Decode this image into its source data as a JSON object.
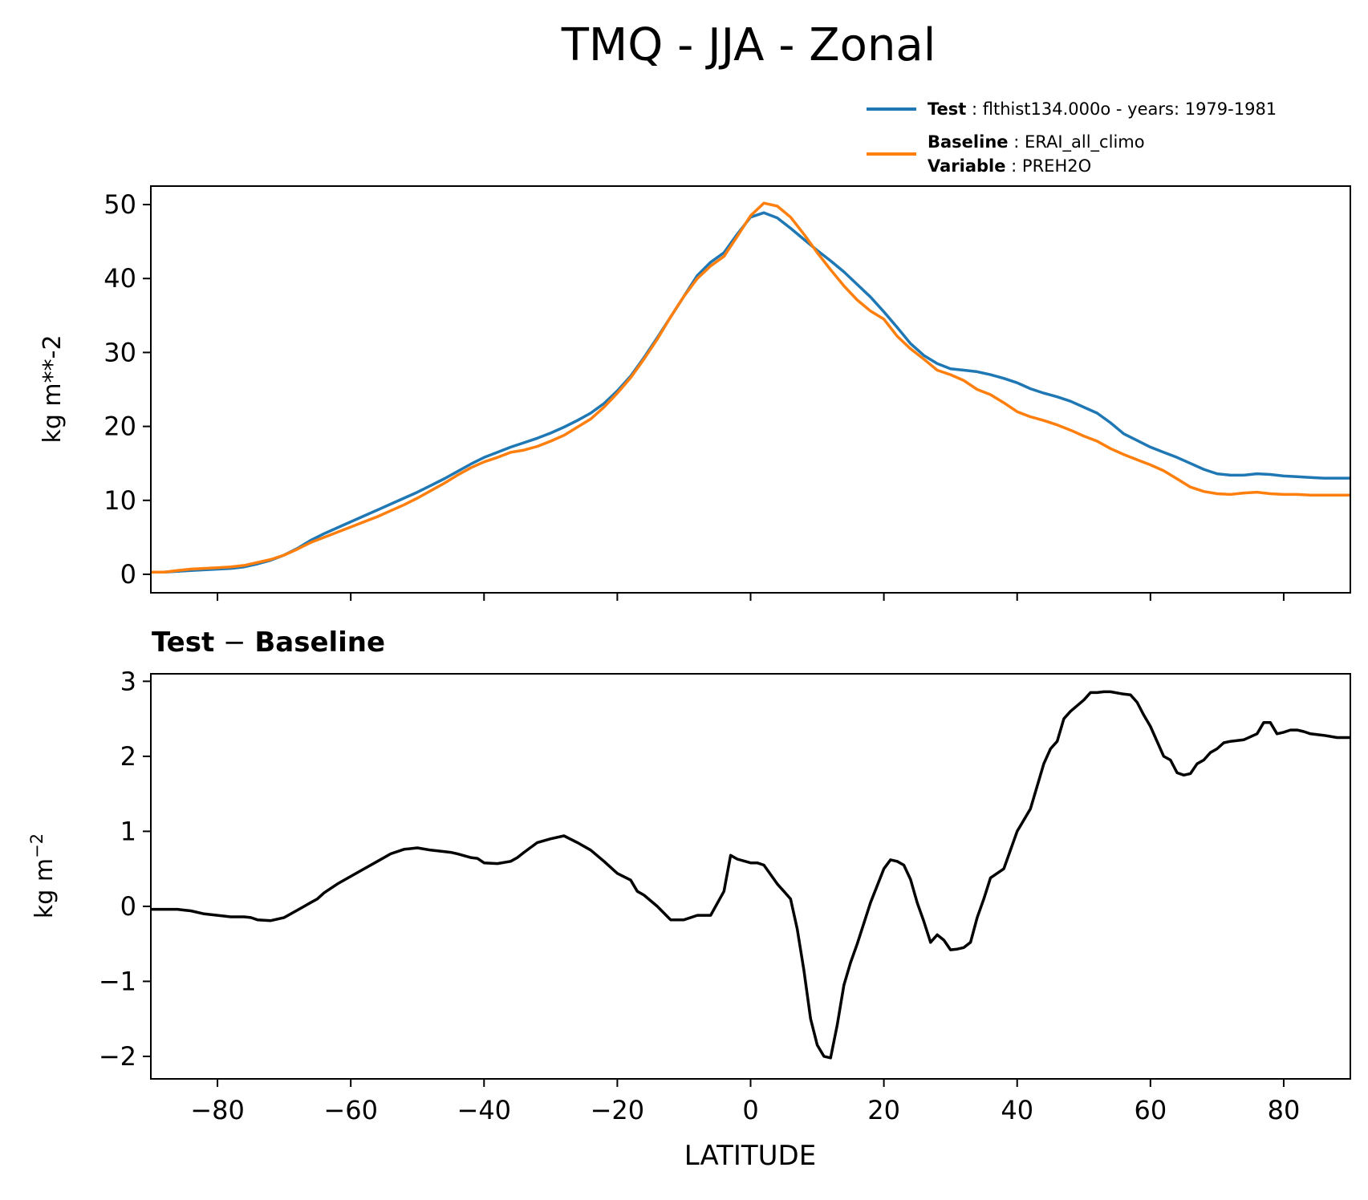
{
  "figure_title": "TMQ - JJA - Zonal",
  "legend": [
    {
      "label_bold": "Test",
      "label_sep": " : ",
      "label_text": "flthist134.000o - years: 1979-1981",
      "color": "#1f77b4"
    },
    {
      "label_bold": "Baseline",
      "label_sep": " : ",
      "label_text": "ERAI_all_climo",
      "label_bold2": "Variable",
      "label_sep2": " : ",
      "label_text2": "PREH2O",
      "color": "#ff7f0e"
    }
  ],
  "chart_data": [
    {
      "type": "line",
      "title": "",
      "xlabel": "",
      "ylabel": "kg m**-2",
      "xlim": [
        -90,
        90
      ],
      "ylim": [
        -2.5,
        52.5
      ],
      "xticks": [
        -80,
        -60,
        -40,
        -20,
        0,
        20,
        40,
        60,
        80
      ],
      "yticks": [
        0,
        10,
        20,
        30,
        40,
        50
      ],
      "ytick_labels": [
        "0",
        "10",
        "20",
        "30",
        "40",
        "50"
      ],
      "x": [
        -90,
        -88,
        -86,
        -84,
        -82,
        -80,
        -78,
        -76,
        -74,
        -72,
        -70,
        -68,
        -66,
        -64,
        -62,
        -60,
        -58,
        -56,
        -54,
        -52,
        -50,
        -48,
        -46,
        -44,
        -42,
        -40,
        -38,
        -36,
        -34,
        -32,
        -30,
        -28,
        -26,
        -24,
        -22,
        -20,
        -18,
        -16,
        -14,
        -12,
        -10,
        -8,
        -6,
        -4,
        -2,
        0,
        2,
        4,
        6,
        8,
        10,
        12,
        14,
        16,
        18,
        20,
        22,
        24,
        26,
        28,
        30,
        32,
        34,
        36,
        38,
        40,
        42,
        44,
        46,
        48,
        50,
        52,
        54,
        56,
        58,
        60,
        62,
        64,
        66,
        68,
        70,
        72,
        74,
        76,
        78,
        80,
        82,
        84,
        86,
        88,
        90
      ],
      "series": [
        {
          "name": "Test",
          "color": "#1f77b4",
          "values": [
            0.3,
            0.3,
            0.4,
            0.5,
            0.6,
            0.7,
            0.8,
            1.0,
            1.4,
            1.9,
            2.6,
            3.5,
            4.6,
            5.5,
            6.3,
            7.1,
            7.9,
            8.7,
            9.5,
            10.3,
            11.1,
            12.0,
            12.9,
            13.9,
            14.9,
            15.8,
            16.5,
            17.2,
            17.8,
            18.4,
            19.1,
            19.9,
            20.8,
            21.8,
            23.1,
            24.8,
            26.8,
            29.3,
            32.0,
            34.8,
            37.6,
            40.4,
            42.2,
            43.5,
            46.0,
            48.3,
            48.9,
            48.2,
            46.8,
            45.3,
            43.8,
            42.4,
            40.9,
            39.2,
            37.5,
            35.5,
            33.4,
            31.2,
            29.6,
            28.5,
            27.8,
            27.6,
            27.4,
            27.0,
            26.5,
            25.9,
            25.1,
            24.5,
            24.0,
            23.4,
            22.6,
            21.8,
            20.5,
            19.0,
            18.1,
            17.2,
            16.5,
            15.8,
            15.0,
            14.2,
            13.6,
            13.4,
            13.4,
            13.6,
            13.5,
            13.3,
            13.2,
            13.1,
            13.0,
            13.0,
            13.0
          ]
        },
        {
          "name": "Baseline",
          "color": "#ff7f0e",
          "values": [
            0.3,
            0.3,
            0.5,
            0.7,
            0.8,
            0.9,
            1.0,
            1.2,
            1.6,
            2.0,
            2.6,
            3.4,
            4.3,
            5.0,
            5.7,
            6.4,
            7.1,
            7.8,
            8.6,
            9.4,
            10.3,
            11.3,
            12.3,
            13.4,
            14.4,
            15.2,
            15.8,
            16.5,
            16.8,
            17.3,
            18.0,
            18.8,
            19.9,
            21.0,
            22.6,
            24.5,
            26.6,
            29.1,
            31.8,
            34.8,
            37.6,
            40.0,
            41.7,
            43.0,
            45.7,
            48.5,
            50.2,
            49.8,
            48.3,
            46.0,
            43.5,
            41.2,
            39.0,
            37.1,
            35.6,
            34.5,
            32.2,
            30.5,
            29.1,
            27.6,
            27.0,
            26.2,
            25.0,
            24.3,
            23.2,
            22.0,
            21.3,
            20.8,
            20.2,
            19.5,
            18.7,
            18.0,
            17.0,
            16.2,
            15.5,
            14.8,
            14.0,
            12.9,
            11.8,
            11.2,
            10.9,
            10.8,
            11.0,
            11.1,
            10.9,
            10.8,
            10.8,
            10.7,
            10.7,
            10.7,
            10.7
          ]
        }
      ]
    },
    {
      "type": "line",
      "title_bold1": "Test",
      "title_sep": " − ",
      "title_bold2": "Baseline",
      "xlabel": "LATITUDE",
      "ylabel": "kg m",
      "ylabel_sup": "−2",
      "xlim": [
        -90,
        90
      ],
      "ylim": [
        -2.3,
        3.1
      ],
      "xticks": [
        -80,
        -60,
        -40,
        -20,
        0,
        20,
        40,
        60,
        80
      ],
      "xtick_labels": [
        "−80",
        "−60",
        "−40",
        "−20",
        "0",
        "20",
        "40",
        "60",
        "80"
      ],
      "yticks": [
        -2,
        -1,
        0,
        1,
        2,
        3
      ],
      "ytick_labels": [
        "−2",
        "−1",
        "0",
        "1",
        "2",
        "3"
      ],
      "x": [
        -90,
        -88,
        -86,
        -85,
        -84,
        -82,
        -80,
        -78,
        -76,
        -75,
        -74,
        -72,
        -70,
        -68,
        -66,
        -65,
        -64,
        -62,
        -60,
        -58,
        -56,
        -54,
        -52,
        -50,
        -48,
        -46,
        -45,
        -44,
        -42,
        -41,
        -40,
        -38,
        -36,
        -35,
        -34,
        -32,
        -30,
        -28,
        -26,
        -24,
        -22,
        -20,
        -18,
        -17,
        -16,
        -14,
        -12,
        -10,
        -8,
        -6,
        -4,
        -3,
        -2,
        0,
        1,
        2,
        4,
        5,
        6,
        7,
        8,
        9,
        10,
        11,
        12,
        13,
        14,
        15,
        16,
        18,
        20,
        21,
        22,
        23,
        24,
        25,
        26,
        27,
        28,
        29,
        30,
        31,
        32,
        33,
        34,
        35,
        36,
        38,
        40,
        42,
        44,
        45,
        46,
        47,
        48,
        50,
        51,
        52,
        53,
        54,
        56,
        57,
        58,
        59,
        60,
        62,
        63,
        64,
        65,
        66,
        67,
        68,
        69,
        70,
        71,
        72,
        74,
        76,
        77,
        78,
        79,
        80,
        81,
        82,
        83,
        84,
        86,
        88,
        90
      ],
      "series": [
        {
          "name": "Test − Baseline",
          "color": "#000000",
          "values": [
            -0.04,
            -0.04,
            -0.04,
            -0.05,
            -0.06,
            -0.1,
            -0.12,
            -0.14,
            -0.14,
            -0.15,
            -0.18,
            -0.19,
            -0.15,
            -0.05,
            0.05,
            0.1,
            0.18,
            0.3,
            0.4,
            0.5,
            0.6,
            0.7,
            0.76,
            0.78,
            0.75,
            0.73,
            0.72,
            0.7,
            0.65,
            0.64,
            0.58,
            0.57,
            0.6,
            0.65,
            0.72,
            0.85,
            0.9,
            0.94,
            0.85,
            0.75,
            0.6,
            0.44,
            0.35,
            0.2,
            0.15,
            0.0,
            -0.18,
            -0.18,
            -0.12,
            -0.12,
            0.2,
            0.68,
            0.63,
            0.58,
            0.58,
            0.55,
            0.3,
            0.2,
            0.1,
            -0.3,
            -0.85,
            -1.5,
            -1.85,
            -2.0,
            -2.02,
            -1.58,
            -1.05,
            -0.75,
            -0.5,
            0.05,
            0.5,
            0.62,
            0.6,
            0.55,
            0.36,
            0.05,
            -0.2,
            -0.48,
            -0.38,
            -0.45,
            -0.58,
            -0.57,
            -0.55,
            -0.48,
            -0.15,
            0.1,
            0.38,
            0.5,
            1.0,
            1.3,
            1.9,
            2.1,
            2.2,
            2.5,
            2.6,
            2.75,
            2.85,
            2.85,
            2.86,
            2.86,
            2.83,
            2.82,
            2.72,
            2.55,
            2.4,
            2.0,
            1.95,
            1.78,
            1.75,
            1.77,
            1.9,
            1.95,
            2.05,
            2.1,
            2.18,
            2.2,
            2.22,
            2.3,
            2.45,
            2.45,
            2.3,
            2.32,
            2.35,
            2.35,
            2.33,
            2.3,
            2.28,
            2.25,
            2.25
          ]
        }
      ]
    }
  ]
}
